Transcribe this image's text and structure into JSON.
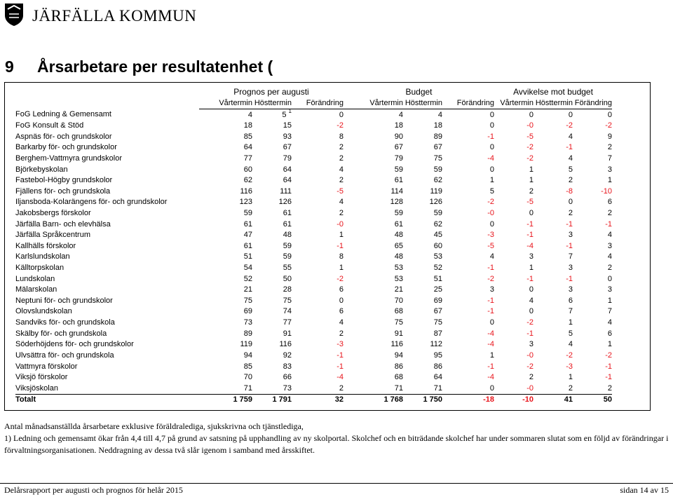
{
  "header": {
    "brand": "JÄRFÄLLA KOMMUN"
  },
  "section": {
    "number": "9",
    "title": "Årsarbetare per resultatenhet ("
  },
  "table": {
    "groups": [
      "Prognos per augusti",
      "Budget",
      "Avvikelse mot budget"
    ],
    "columns": [
      "Vårtermin",
      "Hösttermin",
      "Förändring",
      "Vårtermin",
      "Hösttermin",
      "Förändring",
      "Vårtermin",
      "Hösttermin",
      "Förändring"
    ],
    "rows": [
      {
        "name": "FoG Ledning & Gemensamt",
        "values": [
          "4",
          "5",
          "0",
          "4",
          "4",
          "0",
          "0",
          "0",
          "0"
        ],
        "note": "1"
      },
      {
        "name": "FoG Konsult & Stöd",
        "values": [
          "18",
          "15",
          "-2",
          "18",
          "18",
          "0",
          "-0",
          "-2",
          "-2"
        ]
      },
      {
        "name": "Aspnäs för- och grundskolor",
        "values": [
          "85",
          "93",
          "8",
          "90",
          "89",
          "-1",
          "-5",
          "4",
          "9"
        ]
      },
      {
        "name": "Barkarby för- och grundskolor",
        "values": [
          "64",
          "67",
          "2",
          "67",
          "67",
          "0",
          "-2",
          "-1",
          "2"
        ]
      },
      {
        "name": "Berghem-Vattmyra grundskolor",
        "values": [
          "77",
          "79",
          "2",
          "79",
          "75",
          "-4",
          "-2",
          "4",
          "7"
        ]
      },
      {
        "name": "Björkebyskolan",
        "values": [
          "60",
          "64",
          "4",
          "59",
          "59",
          "0",
          "1",
          "5",
          "3"
        ]
      },
      {
        "name": "Fastebol-Högby grundskolor",
        "values": [
          "62",
          "64",
          "2",
          "61",
          "62",
          "1",
          "1",
          "2",
          "1"
        ]
      },
      {
        "name": "Fjällens för- och grundskola",
        "values": [
          "116",
          "111",
          "-5",
          "114",
          "119",
          "5",
          "2",
          "-8",
          "-10"
        ]
      },
      {
        "name": "Iljansboda-Kolarängens för- och grundskolor",
        "values": [
          "123",
          "126",
          "4",
          "128",
          "126",
          "-2",
          "-5",
          "0",
          "6"
        ]
      },
      {
        "name": "Jakobsbergs förskolor",
        "values": [
          "59",
          "61",
          "2",
          "59",
          "59",
          "-0",
          "0",
          "2",
          "2"
        ]
      },
      {
        "name": "Järfälla Barn- och elevhälsa",
        "values": [
          "61",
          "61",
          "-0",
          "61",
          "62",
          "0",
          "-1",
          "-1",
          "-1"
        ]
      },
      {
        "name": "Järfälla Språkcentrum",
        "values": [
          "47",
          "48",
          "1",
          "48",
          "45",
          "-3",
          "-1",
          "3",
          "4"
        ]
      },
      {
        "name": "Kallhälls förskolor",
        "values": [
          "61",
          "59",
          "-1",
          "65",
          "60",
          "-5",
          "-4",
          "-1",
          "3"
        ]
      },
      {
        "name": "Karlslundskolan",
        "values": [
          "51",
          "59",
          "8",
          "48",
          "53",
          "4",
          "3",
          "7",
          "4"
        ]
      },
      {
        "name": "Källtorpskolan",
        "values": [
          "54",
          "55",
          "1",
          "53",
          "52",
          "-1",
          "1",
          "3",
          "2"
        ]
      },
      {
        "name": "Lundskolan",
        "values": [
          "52",
          "50",
          "-2",
          "53",
          "51",
          "-2",
          "-1",
          "-1",
          "0"
        ]
      },
      {
        "name": "Mälarskolan",
        "values": [
          "21",
          "28",
          "6",
          "21",
          "25",
          "3",
          "0",
          "3",
          "3"
        ]
      },
      {
        "name": "Neptuni för- och grundskolor",
        "values": [
          "75",
          "75",
          "0",
          "70",
          "69",
          "-1",
          "4",
          "6",
          "1"
        ]
      },
      {
        "name": "Olovslundskolan",
        "values": [
          "69",
          "74",
          "6",
          "68",
          "67",
          "-1",
          "0",
          "7",
          "7"
        ]
      },
      {
        "name": "Sandviks för- och grundskola",
        "values": [
          "73",
          "77",
          "4",
          "75",
          "75",
          "0",
          "-2",
          "1",
          "4"
        ]
      },
      {
        "name": "Skälby för- och grundskola",
        "values": [
          "89",
          "91",
          "2",
          "91",
          "87",
          "-4",
          "-1",
          "5",
          "6"
        ]
      },
      {
        "name": "Söderhöjdens för- och grundskolor",
        "values": [
          "119",
          "116",
          "-3",
          "116",
          "112",
          "-4",
          "3",
          "4",
          "1"
        ]
      },
      {
        "name": "Ulvsättra för- och grundskola",
        "values": [
          "94",
          "92",
          "-1",
          "94",
          "95",
          "1",
          "-0",
          "-2",
          "-2"
        ]
      },
      {
        "name": "Vattmyra förskolor",
        "values": [
          "85",
          "83",
          "-1",
          "86",
          "86",
          "-1",
          "-2",
          "-3",
          "-1"
        ]
      },
      {
        "name": "Viksjö förskolor",
        "values": [
          "70",
          "66",
          "-4",
          "68",
          "64",
          "-4",
          "2",
          "1",
          "-1"
        ]
      },
      {
        "name": "Viksjöskolan",
        "values": [
          "71",
          "73",
          "2",
          "71",
          "71",
          "0",
          "-0",
          "2",
          "2"
        ]
      }
    ],
    "total": {
      "name": "Totalt",
      "values": [
        "1 759",
        "1 791",
        "32",
        "1 768",
        "1 750",
        "-18",
        "-10",
        "41",
        "50"
      ]
    },
    "negative_color": "#e8141b"
  },
  "notes": {
    "line1": "Antal månadsanställda årsarbetare exklusive föräldralediga, sjukskrivna och tjänstlediga,",
    "line2": "1) Ledning och gemensamt ökar från 4,4 till 4,7 på grund av satsning på upphandling av ny skolportal. Skolchef och en biträdande skolchef har under sommaren slutat som en följd av förändringar i förvaltningsorganisationen. Neddragning av dessa två slår igenom i samband med årsskiftet."
  },
  "footer": {
    "left": "Delårsrapport per augusti och prognos för helår 2015",
    "right": "sidan 14 av 15"
  }
}
